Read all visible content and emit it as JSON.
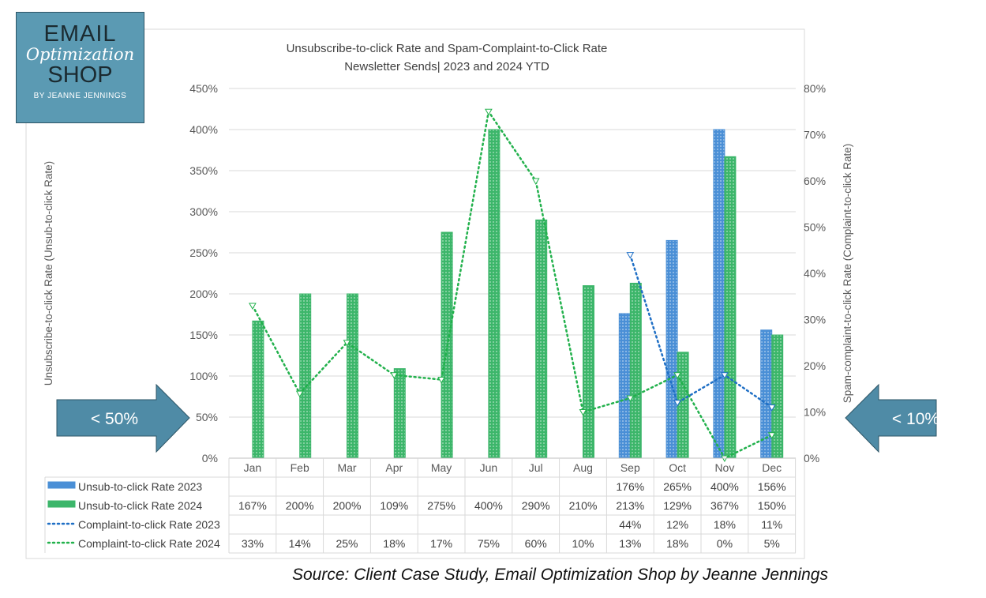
{
  "logo": {
    "line1": "EMAIL",
    "line2": "Optimization",
    "line3": "SHOP",
    "line4": "BY JEANNE JENNINGS"
  },
  "source": "Source: Client Case Study, Email Optimization Shop by Jeanne Jennings",
  "arrows": {
    "left": "< 50%",
    "right": "< 10%",
    "color": "#4f8ba6"
  },
  "chart_data": {
    "type": "bar+line",
    "title": [
      "Unsubscribe-to-click Rate and Spam-Complaint-to-Click Rate",
      "Newsletter Sends| 2023 and 2024 YTD"
    ],
    "ylabel": "Unsubscribe-to-click Rate (Unsub-to-click Rate)",
    "y2label": "Spam-complaint-to-click Rate (Complaint-to-click Rate)",
    "ylim": [
      0,
      450
    ],
    "y2lim": [
      0,
      80
    ],
    "yticks": [
      "0%",
      "50%",
      "100%",
      "150%",
      "200%",
      "250%",
      "300%",
      "350%",
      "400%",
      "450%"
    ],
    "y2ticks": [
      "0%",
      "10%",
      "20%",
      "30%",
      "40%",
      "50%",
      "60%",
      "70%",
      "80%"
    ],
    "grid": true,
    "legend": "data-table",
    "categories": [
      "Jan",
      "Feb",
      "Mar",
      "Apr",
      "May",
      "Jun",
      "Jul",
      "Aug",
      "Sep",
      "Oct",
      "Nov",
      "Dec"
    ],
    "series": [
      {
        "name": "Unsub-to-click Rate 2023",
        "kind": "bar",
        "axis": "left",
        "color": "#4a8fd6",
        "values": [
          null,
          null,
          null,
          null,
          null,
          null,
          null,
          null,
          176,
          265,
          400,
          156
        ]
      },
      {
        "name": "Unsub-to-click Rate 2024",
        "kind": "bar",
        "axis": "left",
        "color": "#3cb66a",
        "values": [
          167,
          200,
          200,
          109,
          275,
          400,
          290,
          210,
          213,
          129,
          367,
          150
        ]
      },
      {
        "name": "Complaint-to-click Rate 2023",
        "kind": "line",
        "axis": "right",
        "color": "#1f6fc5",
        "values": [
          null,
          null,
          null,
          null,
          null,
          null,
          null,
          null,
          44,
          12,
          18,
          11
        ]
      },
      {
        "name": "Complaint-to-click Rate 2024",
        "kind": "line",
        "axis": "right",
        "color": "#22b14c",
        "values": [
          33,
          14,
          25,
          18,
          17,
          75,
          60,
          10,
          13,
          18,
          0,
          5
        ]
      }
    ]
  }
}
